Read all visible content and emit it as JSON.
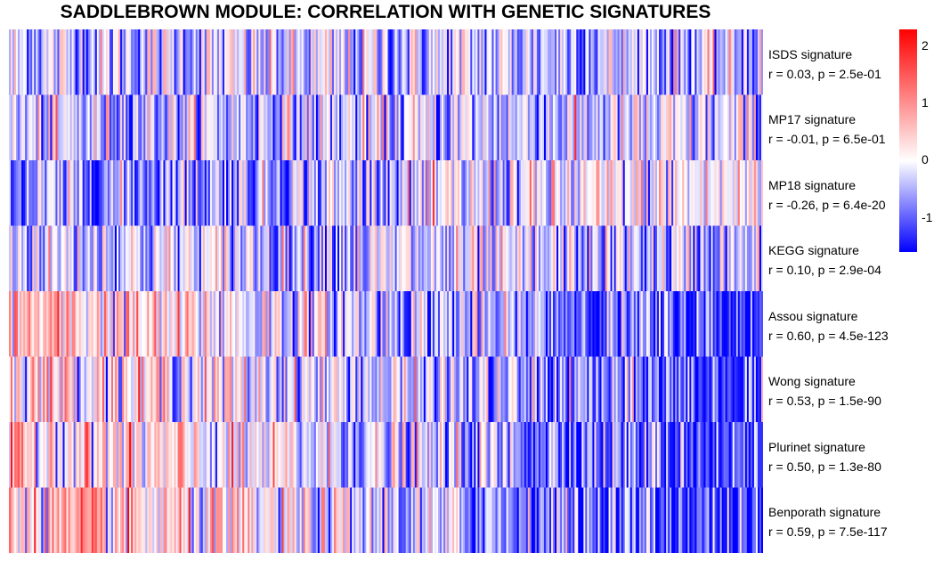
{
  "title": "SADDLEBROWN MODULE: CORRELATION WITH GENETIC SIGNATURES",
  "chart_data": {
    "type": "heatmap",
    "title": "SADDLEBROWN MODULE: CORRELATION WITH GENETIC SIGNATURES",
    "rows": [
      {
        "name": "ISDS signature",
        "stat": "r = 0.03, p = 2.5e-01",
        "r": 0.03
      },
      {
        "name": "MP17 signature",
        "stat": "r = -0.01, p = 6.5e-01",
        "r": -0.01
      },
      {
        "name": "MP18 signature",
        "stat": "r = -0.26, p = 6.4e-20",
        "r": -0.26
      },
      {
        "name": "KEGG signature",
        "stat": "r = 0.10, p = 2.9e-04",
        "r": 0.1
      },
      {
        "name": "Assou signature",
        "stat": "r = 0.60, p = 4.5e-123",
        "r": 0.6
      },
      {
        "name": "Wong signature",
        "stat": "r = 0.53, p = 1.5e-90",
        "r": 0.53
      },
      {
        "name": "Plurinet signature",
        "stat": "r = 0.50, p = 1.3e-80",
        "r": 0.5
      },
      {
        "name": "Benporath signature",
        "stat": "r = 0.59, p = 7.5e-117",
        "r": 0.59
      }
    ],
    "color_scale": {
      "low": "#0000ff",
      "mid": "#ffffff",
      "high": "#ff0000",
      "range": [
        -1.6,
        2.3
      ],
      "ticks": [
        2,
        1,
        0,
        -1
      ]
    },
    "legend_position": "top-right"
  }
}
